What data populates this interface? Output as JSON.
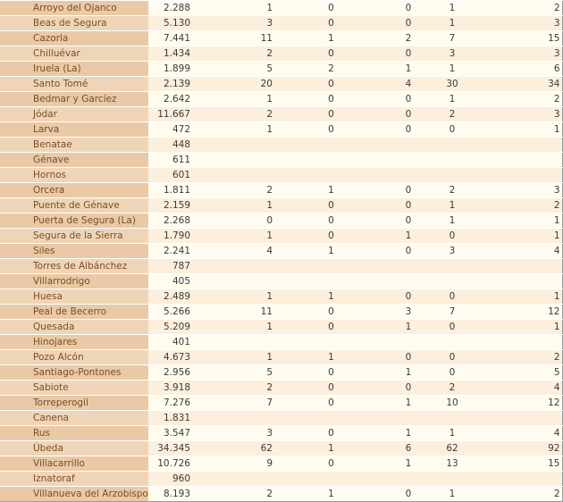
{
  "rows": [
    [
      "Arroyo del Ojanco",
      "2.288",
      "1",
      "0",
      "0",
      "1",
      "2"
    ],
    [
      "Beas de Segura",
      "5.130",
      "3",
      "0",
      "0",
      "1",
      "3"
    ],
    [
      "Cazorla",
      "7.441",
      "11",
      "1",
      "2",
      "7",
      "15"
    ],
    [
      "Chilluévar",
      "1.434",
      "2",
      "0",
      "0",
      "3",
      "3"
    ],
    [
      "Iruela (La)",
      "1.899",
      "5",
      "2",
      "1",
      "1",
      "6"
    ],
    [
      "Santo Tomé",
      "2.139",
      "20",
      "0",
      "4",
      "30",
      "34"
    ],
    [
      "Bedmar y Garcíez",
      "2.642",
      "1",
      "0",
      "0",
      "1",
      "2"
    ],
    [
      "Jódar",
      "11.667",
      "2",
      "0",
      "0",
      "2",
      "3"
    ],
    [
      "Larva",
      "472",
      "1",
      "0",
      "0",
      "0",
      "1"
    ],
    [
      "Benatae",
      "448",
      "",
      "",
      "",
      "",
      ""
    ],
    [
      "Génave",
      "611",
      "",
      "",
      "",
      "",
      ""
    ],
    [
      "Hornos",
      "601",
      "",
      "",
      "",
      "",
      ""
    ],
    [
      "Orcera",
      "1.811",
      "2",
      "1",
      "0",
      "2",
      "3"
    ],
    [
      "Puente de Génave",
      "2.159",
      "1",
      "0",
      "0",
      "1",
      "2"
    ],
    [
      "Puerta de Segura (La)",
      "2.268",
      "0",
      "0",
      "0",
      "1",
      "1"
    ],
    [
      "Segura de la Sierra",
      "1.790",
      "1",
      "0",
      "1",
      "0",
      "1"
    ],
    [
      "Siles",
      "2.241",
      "4",
      "1",
      "0",
      "3",
      "4"
    ],
    [
      "Torres de Albánchez",
      "787",
      "",
      "",
      "",
      "",
      ""
    ],
    [
      "Villarrodrigo",
      "405",
      "",
      "",
      "",
      "",
      ""
    ],
    [
      "Huesa",
      "2.489",
      "1",
      "1",
      "0",
      "0",
      "1"
    ],
    [
      "Peal de Becerro",
      "5.266",
      "11",
      "0",
      "3",
      "7",
      "12"
    ],
    [
      "Quesada",
      "5.209",
      "1",
      "0",
      "1",
      "0",
      "1"
    ],
    [
      "Hinojares",
      "401",
      "",
      "",
      "",
      "",
      ""
    ],
    [
      "Pozo Alcón",
      "4.673",
      "1",
      "1",
      "0",
      "0",
      "2"
    ],
    [
      "Santiago-Pontones",
      "2.956",
      "5",
      "0",
      "1",
      "0",
      "5"
    ],
    [
      "Sabiote",
      "3.918",
      "2",
      "0",
      "0",
      "2",
      "4"
    ],
    [
      "Torreperogil",
      "7.276",
      "7",
      "0",
      "1",
      "10",
      "12"
    ],
    [
      "Canena",
      "1.831",
      "",
      "",
      "",
      "",
      ""
    ],
    [
      "Rus",
      "3.547",
      "3",
      "0",
      "1",
      "1",
      "4"
    ],
    [
      "Úbeda",
      "34.345",
      "62",
      "1",
      "6",
      "62",
      "92"
    ],
    [
      "Villacarrillo",
      "10.726",
      "9",
      "0",
      "1",
      "13",
      "15"
    ],
    [
      "Iznatoraf",
      "960",
      "",
      "",
      "",
      "",
      ""
    ],
    [
      "Villanueva del Arzobispo",
      "8.193",
      "2",
      "1",
      "0",
      "1",
      "2"
    ]
  ]
}
